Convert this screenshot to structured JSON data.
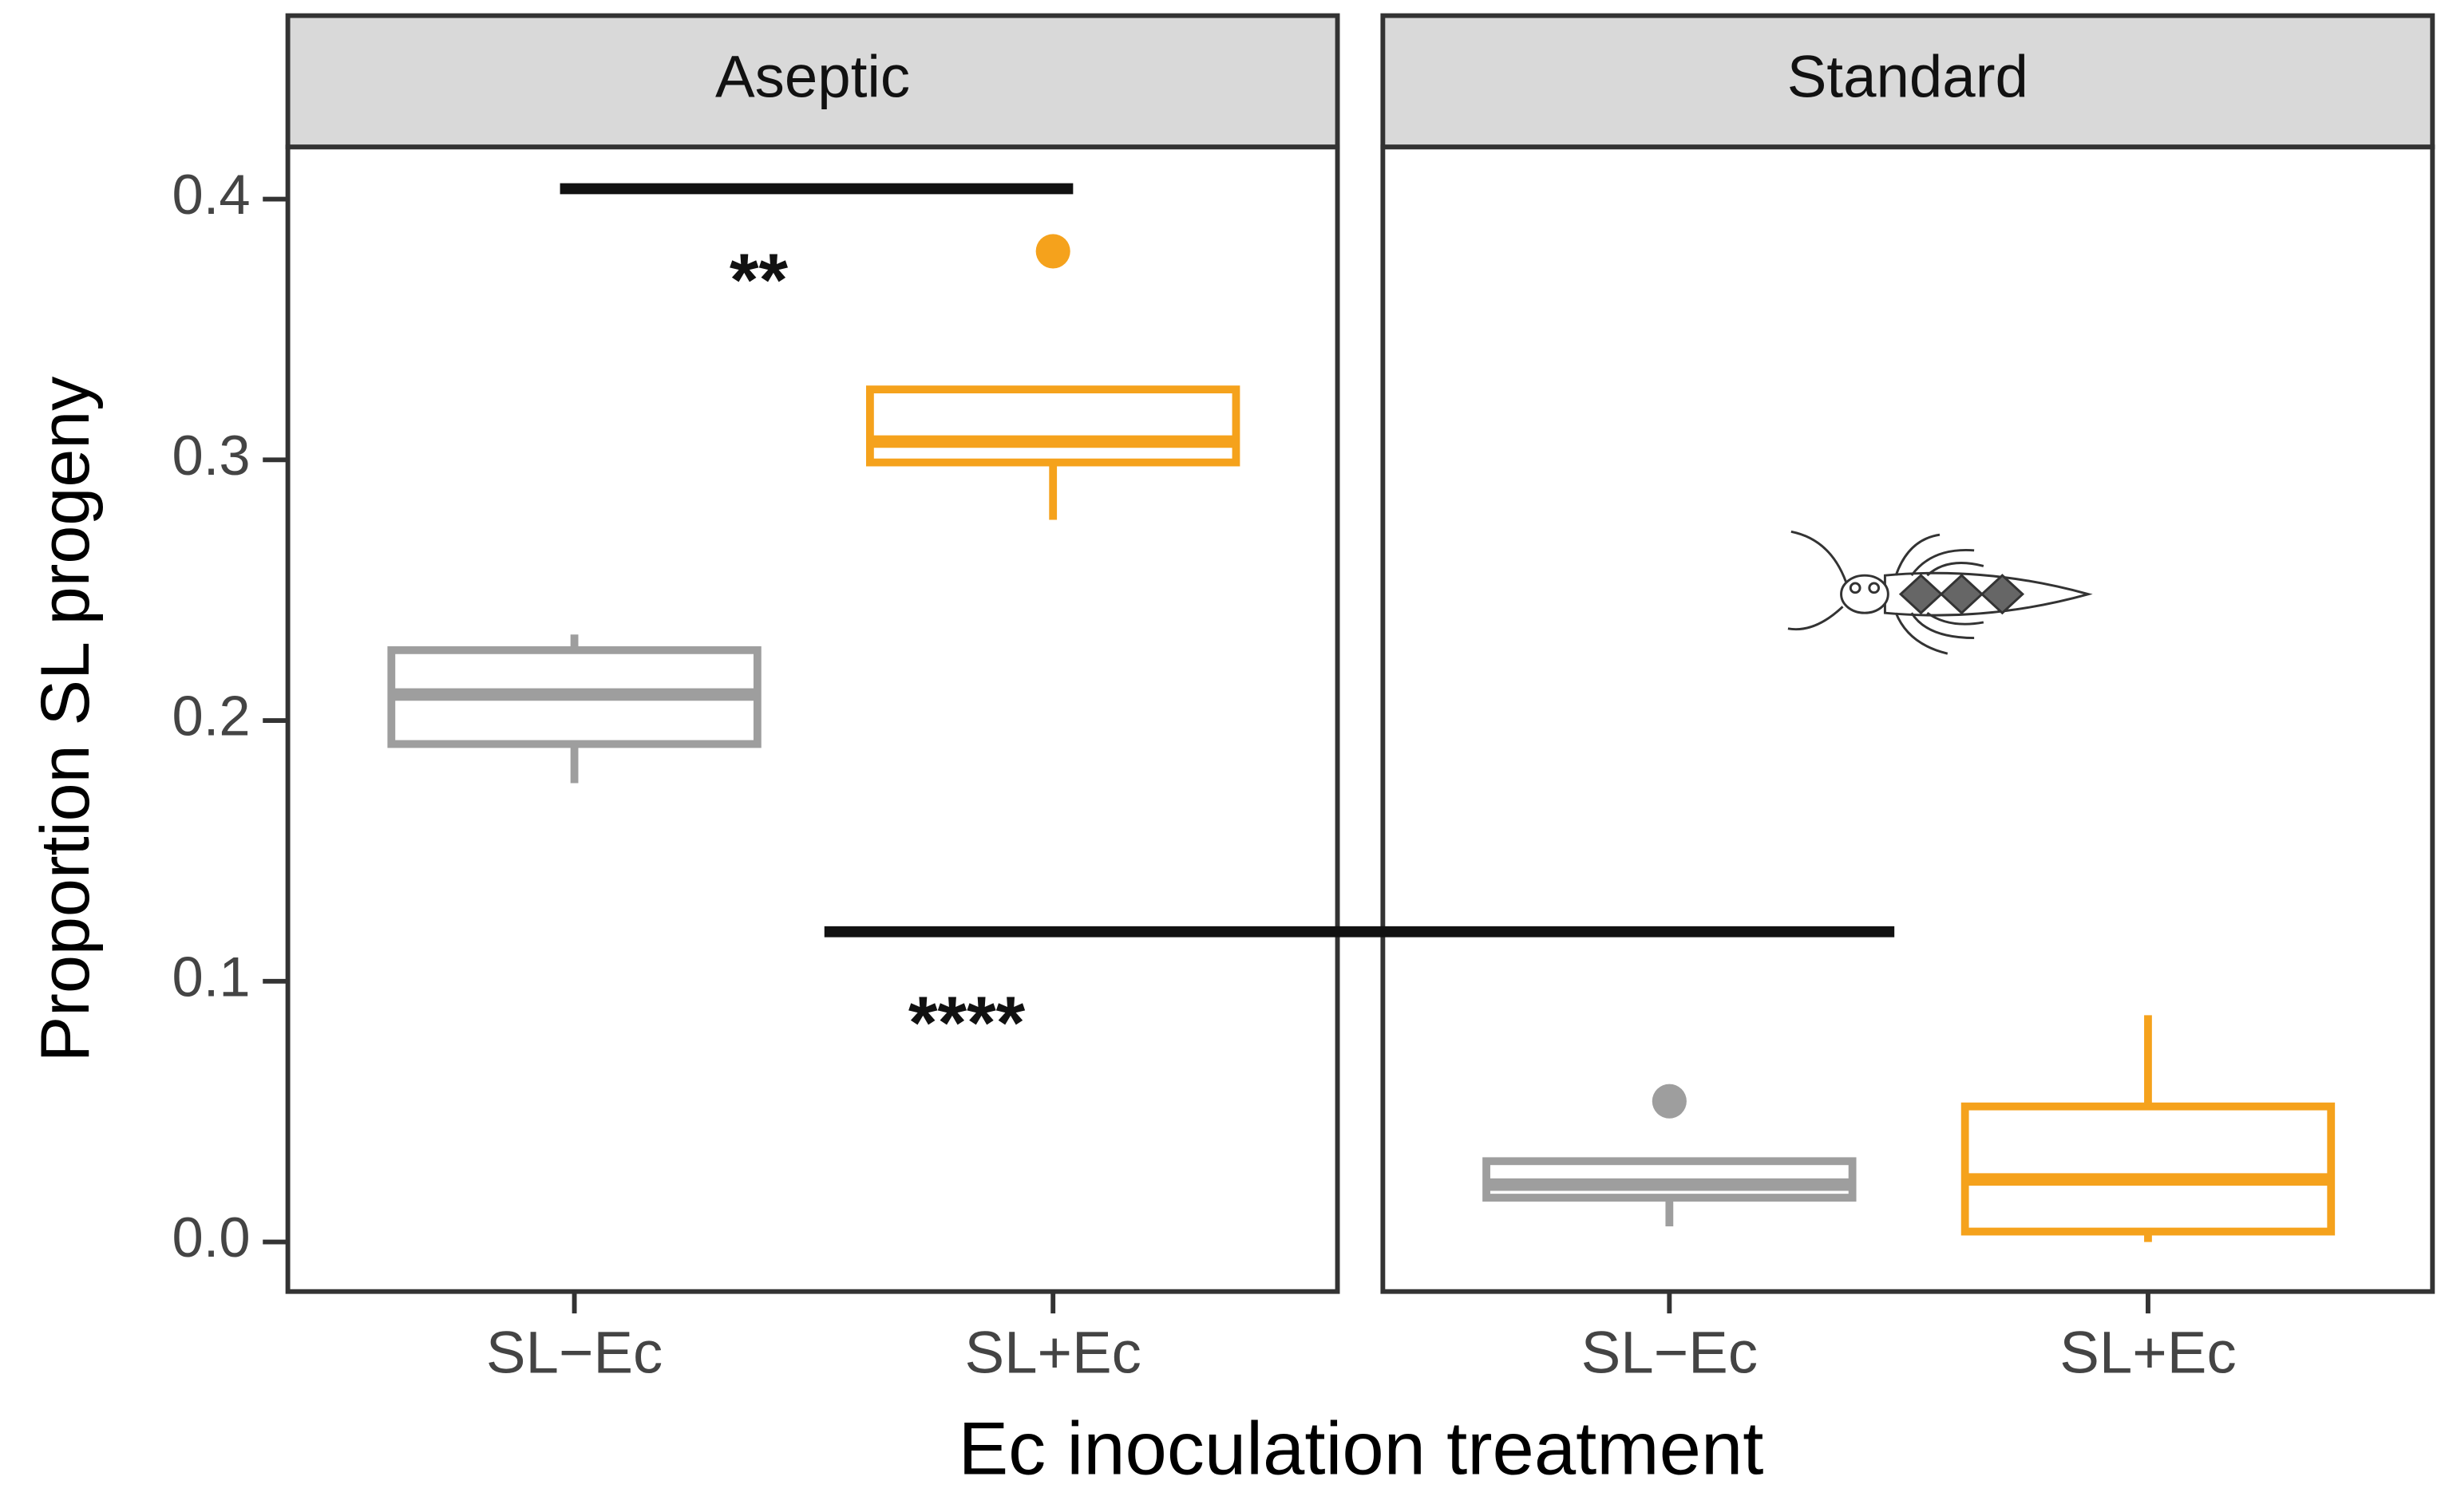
{
  "chart_data": {
    "type": "box",
    "y_label": "Proportion SL progeny",
    "x_label": "Ec inoculation treatment",
    "ylim": [
      -0.019,
      0.42
    ],
    "yticks": [
      {
        "value": 0,
        "label": "0.0"
      },
      0.1,
      0.2,
      0.3,
      0.4
    ],
    "categories": [
      "SL−Ec",
      "SL+Ec"
    ],
    "colors": [
      "#9e9e9e",
      "#f5a21c"
    ],
    "panels": [
      {
        "title": "Aseptic",
        "boxes": [
          {
            "whislo": 0.176,
            "q1": 0.191,
            "median": 0.21,
            "q3": 0.227,
            "whishi": 0.233,
            "outliers": []
          },
          {
            "whislo": 0.277,
            "q1": 0.299,
            "median": 0.307,
            "q3": 0.327,
            "whishi": 0.327,
            "outliers": [
              0.38
            ]
          }
        ]
      },
      {
        "title": "Standard",
        "boxes": [
          {
            "whislo": 0.006,
            "q1": 0.017,
            "median": 0.022,
            "q3": 0.031,
            "whishi": 0.031,
            "outliers": [
              0.054
            ]
          },
          {
            "whislo": 0.0,
            "q1": 0.004,
            "median": 0.024,
            "q3": 0.052,
            "whishi": 0.087,
            "outliers": []
          }
        ]
      }
    ],
    "annotations": [
      {
        "text": "**",
        "y": 0.404
      },
      {
        "text": "****",
        "y": 0.119
      }
    ]
  }
}
